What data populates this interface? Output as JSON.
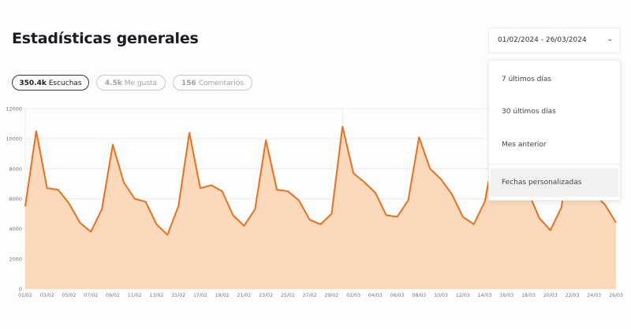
{
  "header": {
    "title": "Estadísticas generales"
  },
  "metrics": [
    {
      "value": "350.4k",
      "label": "Escuchas",
      "active": true
    },
    {
      "value": "4.5k",
      "label": "Me gusta",
      "active": false
    },
    {
      "value": "156",
      "label": "Comentarios",
      "active": false
    }
  ],
  "date_range": {
    "value": "01/02/2024 - 26/03/2024",
    "icon": "chevron-down-icon",
    "options": [
      "7 últimos días",
      "30 últimos días",
      "Mes anterior",
      "Fechas personalizadas"
    ],
    "highlighted": "Fechas personalizadas"
  },
  "chart_data": {
    "type": "area",
    "title": "",
    "xlabel": "",
    "ylabel": "",
    "ylim": [
      0,
      12000
    ],
    "yticks": [
      0,
      2000,
      4000,
      6000,
      8000,
      10000,
      12000
    ],
    "xtick_labels": [
      "01/02",
      "03/02",
      "05/02",
      "07/02",
      "09/02",
      "11/02",
      "13/02",
      "15/02",
      "17/02",
      "19/02",
      "21/02",
      "23/02",
      "25/02",
      "27/02",
      "29/02",
      "02/03",
      "04/03",
      "06/03",
      "08/03",
      "10/03",
      "12/03",
      "14/03",
      "16/03",
      "18/03",
      "20/03",
      "22/03",
      "24/03",
      "26/03"
    ],
    "grid": true,
    "line_color": "#e8701e",
    "fill_color": "#fcd9bb",
    "x": [
      "01/02",
      "02/02",
      "03/02",
      "04/02",
      "05/02",
      "06/02",
      "07/02",
      "08/02",
      "09/02",
      "10/02",
      "11/02",
      "12/02",
      "13/02",
      "14/02",
      "15/02",
      "16/02",
      "17/02",
      "18/02",
      "19/02",
      "20/02",
      "21/02",
      "22/02",
      "23/02",
      "24/02",
      "25/02",
      "26/02",
      "27/02",
      "28/02",
      "29/02",
      "01/03",
      "02/03",
      "03/03",
      "04/03",
      "05/03",
      "06/03",
      "07/03",
      "08/03",
      "09/03",
      "10/03",
      "11/03",
      "12/03",
      "13/03",
      "14/03",
      "15/03",
      "16/03",
      "17/03",
      "18/03",
      "19/03",
      "20/03",
      "21/03",
      "22/03",
      "23/03",
      "24/03",
      "25/03",
      "26/03"
    ],
    "values": [
      5500,
      10500,
      6700,
      6600,
      5700,
      4400,
      3800,
      5300,
      9600,
      7100,
      6000,
      5800,
      4300,
      3600,
      5500,
      10400,
      6700,
      6900,
      6500,
      4900,
      4200,
      5300,
      9900,
      6600,
      6500,
      5900,
      4600,
      4300,
      5000,
      10800,
      7700,
      7100,
      6400,
      4900,
      4800,
      5900,
      10100,
      8000,
      7300,
      6300,
      4800,
      4300,
      5800,
      9600,
      7400,
      7000,
      6400,
      4700,
      3900,
      5400,
      9800,
      7000,
      6300,
      5600,
      4400
    ]
  }
}
